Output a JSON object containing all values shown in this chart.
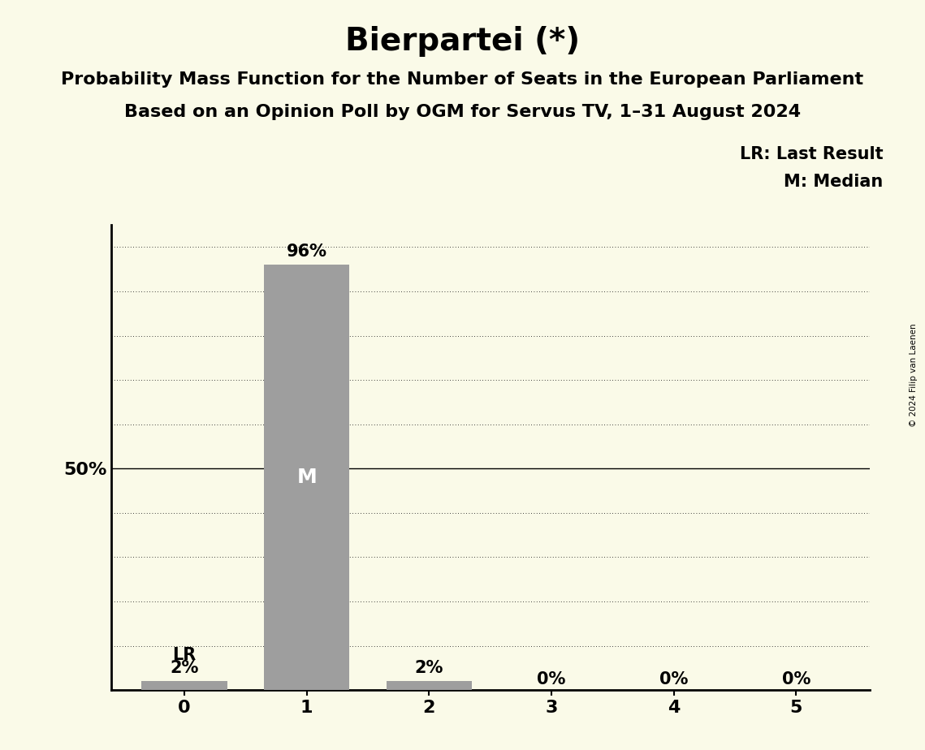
{
  "title": "Bierpartei (*)",
  "subtitle1": "Probability Mass Function for the Number of Seats in the European Parliament",
  "subtitle2": "Based on an Opinion Poll by OGM for Servus TV, 1–31 August 2024",
  "copyright": "© 2024 Filip van Laenen",
  "seats": [
    0,
    1,
    2,
    3,
    4,
    5
  ],
  "probabilities": [
    0.02,
    0.96,
    0.02,
    0.0,
    0.0,
    0.0
  ],
  "bar_color": "#9e9e9e",
  "background_color": "#fafae8",
  "bar_labels": [
    "2%",
    "96%",
    "2%",
    "0%",
    "0%",
    "0%"
  ],
  "median_seat": 1,
  "median_label": "M",
  "lr_seat": 0,
  "lr_label": "LR",
  "legend_lr": "LR: Last Result",
  "legend_m": "M: Median",
  "yticks": [
    0.0,
    0.1,
    0.2,
    0.3,
    0.4,
    0.5,
    0.6,
    0.7,
    0.8,
    0.9,
    1.0
  ],
  "ytick_labels": [
    "",
    "",
    "",
    "",
    "",
    "50%",
    "",
    "",
    "",
    "",
    ""
  ],
  "ylim": [
    0,
    1.05
  ],
  "title_fontsize": 28,
  "subtitle_fontsize": 16,
  "bar_label_fontsize": 15,
  "axis_tick_fontsize": 16,
  "legend_fontsize": 15,
  "median_fontsize": 18
}
